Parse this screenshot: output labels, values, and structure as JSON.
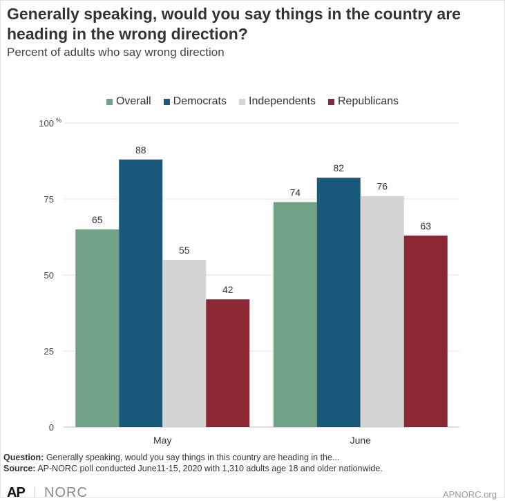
{
  "title": "Generally speaking, would you say things in the country are heading in the wrong direction?",
  "subtitle": "Percent of adults who say wrong direction",
  "chart_data": {
    "type": "bar",
    "categories": [
      "May",
      "June"
    ],
    "series": [
      {
        "name": "Overall",
        "color": "#70a386",
        "values": [
          65,
          74
        ]
      },
      {
        "name": "Democrats",
        "color": "#195a7a",
        "values": [
          88,
          82
        ]
      },
      {
        "name": "Independents",
        "color": "#d4d4d4",
        "values": [
          55,
          76
        ]
      },
      {
        "name": "Republicans",
        "color": "#8b2834",
        "values": [
          42,
          63
        ]
      }
    ],
    "ylim": [
      0,
      100
    ],
    "yticks": [
      "0",
      "25",
      "50",
      "75",
      "100"
    ],
    "y_unit": "%",
    "grid": true,
    "legend_position": "top-center",
    "data_labels": true
  },
  "footer": {
    "question_label": "Question:",
    "question_text": "Generally speaking, would you say things in this country are heading in the...",
    "source_label": "Source:",
    "source_text": "AP-NORC poll conducted June11-15, 2020 with 1,310 adults age 18 and older nationwide."
  },
  "branding": {
    "ap_logo": "AP",
    "norc_logo": "NORC",
    "site": "APNORC.org"
  }
}
